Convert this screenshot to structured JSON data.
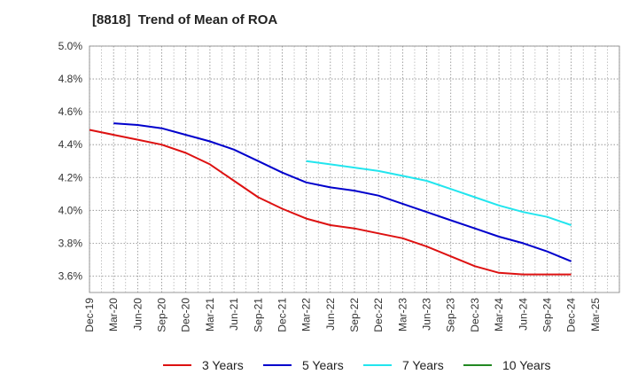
{
  "chart_data": {
    "type": "line",
    "title": "[8818]  Trend of Mean of ROA",
    "xlabel": "",
    "ylabel": "",
    "ylim": [
      3.5,
      5.0
    ],
    "yticks": [
      "3.6%",
      "3.8%",
      "4.0%",
      "4.2%",
      "4.4%",
      "4.6%",
      "4.8%",
      "5.0%"
    ],
    "ytick_values": [
      3.6,
      3.8,
      4.0,
      4.2,
      4.4,
      4.6,
      4.8,
      5.0
    ],
    "categories": [
      "Dec-19",
      "Mar-20",
      "Jun-20",
      "Sep-20",
      "Dec-20",
      "Mar-21",
      "Jun-21",
      "Sep-21",
      "Dec-21",
      "Mar-22",
      "Jun-22",
      "Sep-22",
      "Dec-22",
      "Mar-23",
      "Jun-23",
      "Sep-23",
      "Dec-23",
      "Mar-24",
      "Jun-24",
      "Sep-24",
      "Dec-24",
      "Mar-25"
    ],
    "grid": true,
    "series": [
      {
        "name": "3 Years",
        "color": "#dd1111",
        "values": [
          4.49,
          4.46,
          4.43,
          4.4,
          4.35,
          4.28,
          4.18,
          4.08,
          4.01,
          3.95,
          3.91,
          3.89,
          3.86,
          3.83,
          3.78,
          3.72,
          3.66,
          3.62,
          3.61,
          3.61,
          3.61,
          null
        ]
      },
      {
        "name": "5 Years",
        "color": "#0000cc",
        "values": [
          null,
          4.53,
          4.52,
          4.5,
          4.46,
          4.42,
          4.37,
          4.3,
          4.23,
          4.17,
          4.14,
          4.12,
          4.09,
          4.04,
          3.99,
          3.94,
          3.89,
          3.84,
          3.8,
          3.75,
          3.69,
          null
        ]
      },
      {
        "name": "7 Years",
        "color": "#22e5ee",
        "values": [
          null,
          null,
          null,
          null,
          null,
          null,
          null,
          null,
          null,
          4.3,
          4.28,
          4.26,
          4.24,
          4.21,
          4.18,
          4.13,
          4.08,
          4.03,
          3.99,
          3.96,
          3.91,
          null
        ]
      },
      {
        "name": "10 Years",
        "color": "#228822",
        "values": [
          null,
          null,
          null,
          null,
          null,
          null,
          null,
          null,
          null,
          null,
          null,
          null,
          null,
          null,
          null,
          null,
          null,
          null,
          null,
          null,
          null,
          null
        ]
      }
    ]
  }
}
